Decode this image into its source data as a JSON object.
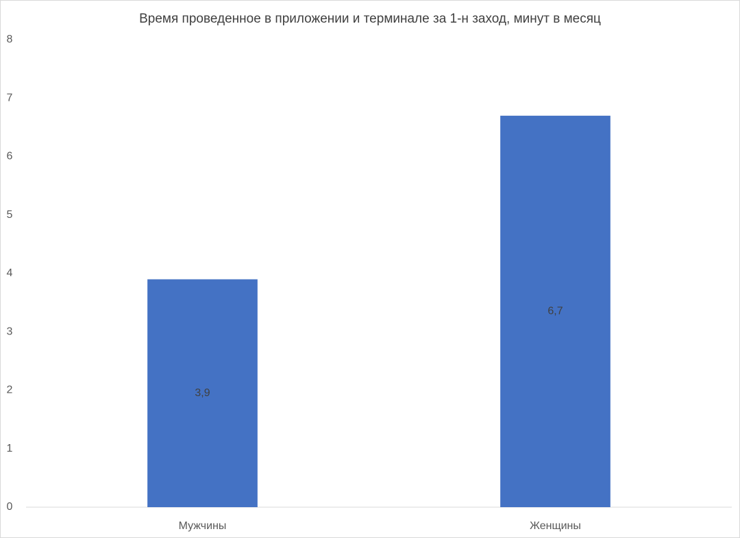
{
  "chart_data": {
    "type": "bar",
    "title": "Время проведенное в приложении и терминале за 1-н заход, минут в месяц",
    "categories": [
      "Мужчины",
      "Женщины"
    ],
    "values": [
      3.9,
      6.7
    ],
    "value_labels": [
      "3,9",
      "6,7"
    ],
    "color": "#4472c4",
    "ylim": [
      0,
      8
    ],
    "yticks": [
      0,
      1,
      2,
      3,
      4,
      5,
      6,
      7,
      8
    ],
    "grid": false
  }
}
